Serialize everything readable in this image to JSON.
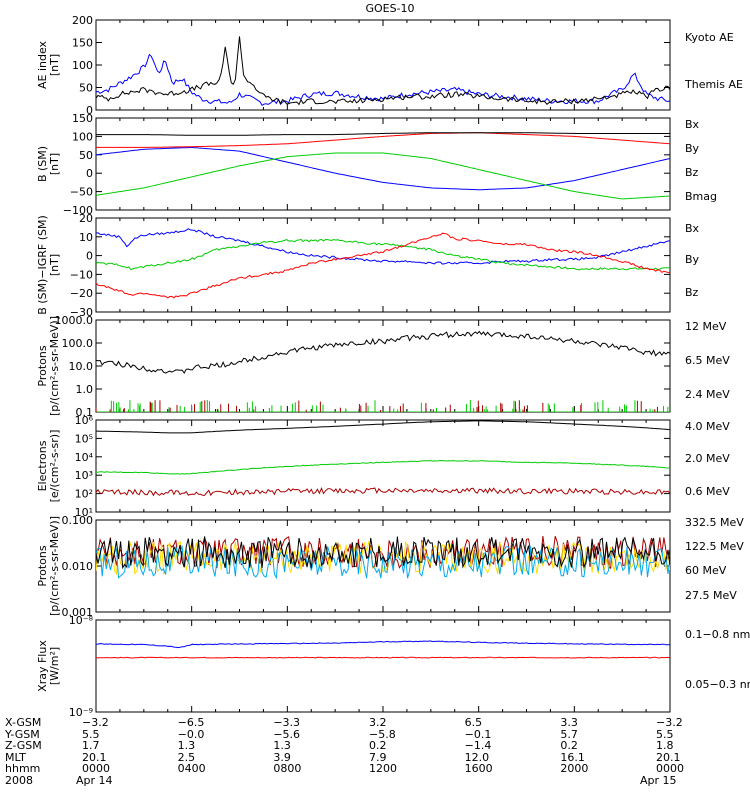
{
  "title": "GOES-10",
  "chart_data": [
    {
      "id": "ae",
      "type": "line",
      "ylabel": "AE index\n[nT]",
      "ylim": [
        0,
        200
      ],
      "yticks": [
        0,
        50,
        100,
        150,
        200
      ],
      "ytick_labels": [
        "0",
        "50",
        "100",
        "150",
        "200"
      ],
      "scale": "linear",
      "series": [
        {
          "name": "Kyoto AE",
          "color": "#0000ff",
          "legend_color": "#0000ff",
          "x": [
            0,
            0.5,
            1,
            1.5,
            2,
            2.3,
            2.6,
            2.9,
            3.2,
            3.6,
            4,
            4.4,
            4.8,
            5.2,
            5.6,
            6,
            6.5,
            7,
            8,
            9,
            10,
            11,
            12,
            13,
            14,
            15,
            16,
            17,
            18,
            19,
            20,
            21,
            21.5,
            22,
            22.5,
            23,
            23.5,
            24
          ],
          "y": [
            40,
            45,
            60,
            75,
            95,
            125,
            80,
            110,
            60,
            70,
            40,
            25,
            20,
            18,
            15,
            35,
            25,
            15,
            20,
            35,
            38,
            30,
            25,
            35,
            40,
            45,
            35,
            30,
            25,
            20,
            20,
            20,
            35,
            45,
            80,
            35,
            25,
            20
          ]
        },
        {
          "name": "Themis AE",
          "color": "#000000",
          "legend_color": "#000000",
          "x": [
            0,
            0.5,
            1,
            1.5,
            2,
            2.5,
            3,
            3.5,
            4,
            4.5,
            5,
            5.2,
            5.4,
            5.6,
            5.8,
            6,
            6.2,
            6.5,
            7,
            8,
            9,
            10,
            11,
            12,
            13,
            14,
            15,
            16,
            17,
            18,
            19,
            20,
            21,
            22,
            22.5,
            23,
            23.5,
            24
          ],
          "y": [
            30,
            25,
            35,
            40,
            45,
            40,
            35,
            40,
            45,
            55,
            60,
            65,
            140,
            70,
            55,
            160,
            70,
            60,
            30,
            15,
            20,
            18,
            20,
            25,
            30,
            30,
            35,
            30,
            25,
            20,
            18,
            20,
            25,
            35,
            40,
            30,
            45,
            50
          ]
        }
      ]
    },
    {
      "id": "bsm",
      "type": "line",
      "ylabel": "B (SM)\n[nT]",
      "ylim": [
        -100,
        150
      ],
      "yticks": [
        -100,
        -50,
        0,
        50,
        100,
        150
      ],
      "ytick_labels": [
        "−100",
        "−50",
        "0",
        "50",
        "100",
        "150"
      ],
      "scale": "linear",
      "series": [
        {
          "name": "Bx",
          "color": "#0000ff",
          "legend_color": "#0000ff",
          "x": [
            0,
            2,
            4,
            6,
            8,
            10,
            12,
            14,
            16,
            18,
            20,
            22,
            24
          ],
          "y": [
            50,
            65,
            70,
            60,
            30,
            0,
            -25,
            -40,
            -45,
            -40,
            -20,
            10,
            40
          ]
        },
        {
          "name": "By",
          "color": "#00cc00",
          "legend_color": "#00c000",
          "x": [
            0,
            2,
            4,
            6,
            8,
            10,
            12,
            14,
            16,
            18,
            20,
            22,
            24
          ],
          "y": [
            -60,
            -40,
            -10,
            20,
            45,
            55,
            55,
            40,
            10,
            -20,
            -50,
            -70,
            -62
          ]
        },
        {
          "name": "Bz",
          "color": "#ff0000",
          "legend_color": "#d00000",
          "x": [
            0,
            2,
            4,
            6,
            8,
            10,
            12,
            14,
            16,
            18,
            20,
            22,
            24
          ],
          "y": [
            70,
            70,
            72,
            75,
            80,
            90,
            100,
            108,
            110,
            105,
            100,
            90,
            80
          ]
        },
        {
          "name": "Bmag",
          "color": "#000000",
          "legend_color": "#000000",
          "x": [
            0,
            2,
            4,
            6,
            8,
            10,
            12,
            14,
            16,
            18,
            20,
            22,
            24
          ],
          "y": [
            105,
            105,
            103,
            103,
            105,
            105,
            108,
            110,
            110,
            110,
            108,
            108,
            108
          ]
        }
      ]
    },
    {
      "id": "bsmigrf",
      "type": "line",
      "ylabel": "B (SM)−IGRF (SM)\n[nT]",
      "ylim": [
        -30,
        20
      ],
      "yticks": [
        -30,
        -20,
        -10,
        0,
        10,
        20
      ],
      "ytick_labels": [
        "−30",
        "−20",
        "−10",
        "0",
        "10",
        "20"
      ],
      "scale": "linear",
      "series": [
        {
          "name": "Bx",
          "color": "#0000ff",
          "legend_color": "#0000ff",
          "x": [
            0,
            1,
            1.3,
            1.6,
            2,
            3,
            4,
            4.5,
            5,
            6,
            7,
            8,
            9,
            10,
            11,
            12,
            13,
            14,
            15,
            16,
            17,
            18,
            19,
            20,
            21,
            22,
            23,
            24
          ],
          "y": [
            12,
            10,
            5,
            9,
            11,
            12,
            14,
            12,
            10,
            8,
            5,
            2,
            0,
            -1,
            -2,
            -3,
            -3,
            -4,
            -4,
            -4,
            -3,
            -3,
            -2,
            -2,
            -1,
            2,
            5,
            8
          ]
        },
        {
          "name": "By",
          "color": "#00cc00",
          "legend_color": "#00c000",
          "x": [
            0,
            1,
            1.5,
            2,
            3,
            4,
            5,
            6,
            7,
            8,
            9,
            10,
            11,
            12,
            13,
            14,
            15,
            16,
            17,
            18,
            19,
            20,
            21,
            22,
            23,
            24
          ],
          "y": [
            -4,
            -5,
            -7,
            -6,
            -4,
            -2,
            3,
            5,
            7,
            8,
            8,
            8,
            7,
            6,
            5,
            3,
            0,
            -2,
            -4,
            -5,
            -6,
            -7,
            -7,
            -7,
            -7,
            -7
          ]
        },
        {
          "name": "Bz",
          "color": "#ff0000",
          "legend_color": "#d00000",
          "x": [
            0,
            1,
            1.5,
            2,
            3,
            3.5,
            4,
            5,
            6,
            7,
            8,
            9,
            10,
            11,
            12,
            13,
            14,
            14.5,
            15,
            16,
            17,
            18,
            19,
            20,
            21,
            22,
            23,
            24
          ],
          "y": [
            -15,
            -19,
            -21,
            -20,
            -22,
            -22,
            -20,
            -16,
            -12,
            -10,
            -8,
            -4,
            -2,
            0,
            2,
            6,
            10,
            12,
            9,
            8,
            6,
            6,
            3,
            2,
            0,
            -3,
            -7,
            -9
          ]
        }
      ]
    },
    {
      "id": "protons_low",
      "type": "line",
      "ylabel": "Protons\n[p/(cm²-s-sr-MeV)]",
      "ylim": [
        0.1,
        1000
      ],
      "yticks": [
        0.1,
        1,
        10,
        100,
        1000
      ],
      "ytick_labels": [
        "0.1",
        "1.0",
        "10.0",
        "100.0",
        "1000.0"
      ],
      "scale": "log",
      "series": [
        {
          "name": "12 MeV",
          "color": "#aa0000",
          "legend_color": "#aa0000",
          "x": [
            0,
            24
          ],
          "y": [
            0.1,
            0.1
          ]
        },
        {
          "name": "6.5 MeV",
          "color": "#00cc00",
          "legend_color": "#00c000",
          "x": [
            0,
            24
          ],
          "y": [
            0.1,
            0.1
          ]
        },
        {
          "name": "2.4 MeV",
          "color": "#000000",
          "legend_color": "#000000",
          "x": [
            0,
            1,
            2,
            3,
            3.5,
            4,
            5,
            6,
            7,
            8,
            9,
            10,
            11,
            12,
            13,
            14,
            15,
            16,
            17,
            18,
            19,
            20,
            21,
            22,
            23,
            24
          ],
          "y": [
            15,
            12,
            8,
            6,
            5,
            8,
            10,
            15,
            25,
            40,
            60,
            80,
            100,
            120,
            160,
            200,
            240,
            250,
            220,
            200,
            150,
            120,
            80,
            60,
            40,
            30
          ]
        }
      ]
    },
    {
      "id": "electrons",
      "type": "line",
      "ylabel": "Electrons\n[e/(cm²-s-sr)]",
      "ylim": [
        10,
        1000000
      ],
      "yticks": [
        10,
        100,
        1000,
        10000,
        100000,
        1000000
      ],
      "ytick_labels": [
        "10¹",
        "10²",
        "10³",
        "10⁴",
        "10⁵",
        "10⁶"
      ],
      "scale": "log",
      "series": [
        {
          "name": "4.0 MeV",
          "color": "#aa0000",
          "legend_color": "#aa0000",
          "x": [
            0,
            4,
            8,
            12,
            16,
            20,
            24
          ],
          "y": [
            120,
            110,
            130,
            150,
            140,
            130,
            120
          ]
        },
        {
          "name": "2.0 MeV",
          "color": "#00cc00",
          "legend_color": "#00c000",
          "x": [
            0,
            2,
            3,
            4,
            6,
            8,
            10,
            12,
            14,
            16,
            18,
            20,
            22,
            24
          ],
          "y": [
            1500,
            1400,
            1200,
            1200,
            2000,
            3000,
            4000,
            5000,
            6000,
            6000,
            5000,
            4500,
            3500,
            2500
          ]
        },
        {
          "name": "0.6 MeV",
          "color": "#000000",
          "legend_color": "#000000",
          "x": [
            0,
            2,
            3,
            4,
            6,
            8,
            10,
            12,
            14,
            16,
            18,
            20,
            22,
            24
          ],
          "y": [
            250000,
            220000,
            200000,
            200000,
            280000,
            350000,
            450000,
            600000,
            800000,
            900000,
            800000,
            600000,
            450000,
            300000
          ]
        }
      ]
    },
    {
      "id": "protons_high",
      "type": "line",
      "ylabel": "Protons\n[p/(cm²-s-sr-MeV)]",
      "ylim": [
        0.001,
        0.1
      ],
      "yticks": [
        0.001,
        0.01,
        0.1
      ],
      "ytick_labels": [
        "0.001",
        "0.010",
        "0.100"
      ],
      "scale": "log",
      "series": [
        {
          "name": "332.5 MeV",
          "color": "#aa0000",
          "legend_color": "#aa0000",
          "x": [
            0,
            24
          ],
          "y": [
            0.02,
            0.02
          ]
        },
        {
          "name": "122.5 MeV",
          "color": "#ffdd00",
          "legend_color": "#ffdd00",
          "x": [
            0,
            24
          ],
          "y": [
            0.015,
            0.015
          ]
        },
        {
          "name": "60 MeV",
          "color": "#00aaee",
          "legend_color": "#00aaee",
          "x": [
            0,
            24
          ],
          "y": [
            0.012,
            0.012
          ]
        },
        {
          "name": "27.5 MeV",
          "color": "#000000",
          "legend_color": "#000000",
          "x": [
            0,
            24
          ],
          "y": [
            0.02,
            0.02
          ]
        }
      ]
    },
    {
      "id": "xray",
      "type": "line",
      "ylabel": "Xray Flux\n[W/m²]",
      "ylim": [
        1e-09,
        1e-08
      ],
      "yticks": [
        1e-09,
        1e-08
      ],
      "ytick_labels": [
        "10⁻⁹",
        "10⁻⁸"
      ],
      "scale": "log",
      "series": [
        {
          "name": "0.1−0.8 nm",
          "color": "#ff0000",
          "legend_color": "#d00000",
          "x": [
            0,
            24
          ],
          "y": [
            3.9e-09,
            3.9e-09
          ]
        },
        {
          "name": "0.05−0.3 nm",
          "color": "#0000ff",
          "legend_color": "#0000ff",
          "x": [
            0,
            2,
            3,
            3.5,
            4,
            6,
            10,
            12,
            14,
            16,
            18,
            20,
            24
          ],
          "y": [
            5.5e-09,
            5.4e-09,
            5.2e-09,
            5e-09,
            5.4e-09,
            5.5e-09,
            5.6e-09,
            5.8e-09,
            5.9e-09,
            5.7e-09,
            5.6e-09,
            5.5e-09,
            5.4e-09
          ]
        }
      ]
    }
  ],
  "footer": {
    "rows": [
      {
        "label": "X-GSM",
        "values": [
          "−3.2",
          "−6.5",
          "−3.3",
          "3.2",
          "6.5",
          "3.3",
          "−3.2"
        ]
      },
      {
        "label": "Y-GSM",
        "values": [
          "5.5",
          "−0.0",
          "−5.6",
          "−5.8",
          "−0.1",
          "5.7",
          "5.5"
        ]
      },
      {
        "label": "Z-GSM",
        "values": [
          "1.7",
          "1.3",
          "1.3",
          "0.2",
          "−1.4",
          "0.2",
          "1.8"
        ]
      },
      {
        "label": "MLT",
        "values": [
          "20.1",
          "2.5",
          "3.9",
          "7.9",
          "12.0",
          "16.1",
          "20.1"
        ]
      },
      {
        "label": "hhmm",
        "values": [
          "0000",
          "0400",
          "0800",
          "1200",
          "1600",
          "2000",
          "0000"
        ]
      },
      {
        "label": "2008",
        "values": [
          "Apr 14",
          "",
          "",
          "",
          "",
          "",
          "Apr 15"
        ]
      }
    ]
  }
}
